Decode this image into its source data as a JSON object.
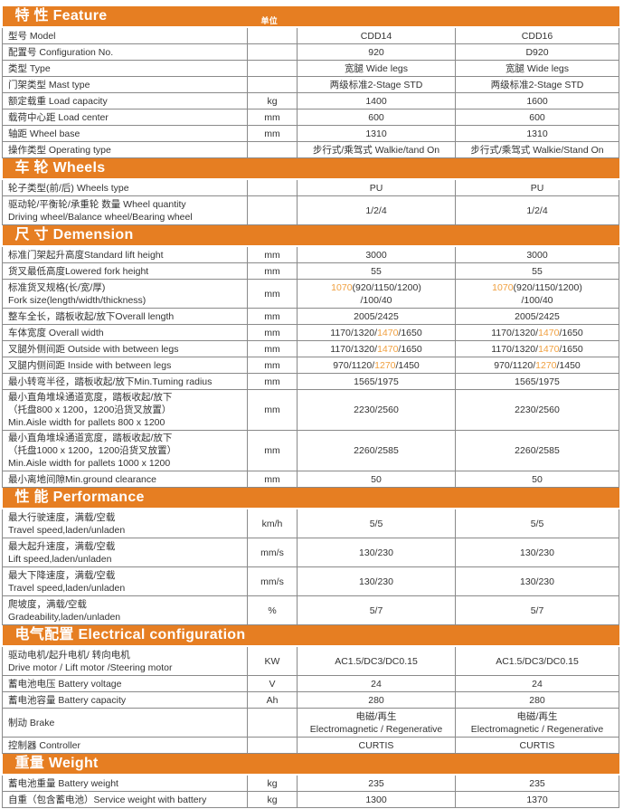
{
  "accent_color": "#e67e22",
  "highlight_color": "#f0a040",
  "unit_header": "单位",
  "sections": [
    {
      "title": "特 性  Feature",
      "show_unit_header": true,
      "rows": [
        {
          "label": [
            "型号 Model"
          ],
          "unit": "",
          "values": [
            [
              "CDD14"
            ],
            [
              "CDD16"
            ]
          ]
        },
        {
          "label": [
            "配置号 Configuration No."
          ],
          "unit": "",
          "values": [
            [
              "920"
            ],
            [
              "D920"
            ]
          ]
        },
        {
          "label": [
            "类型 Type"
          ],
          "unit": "",
          "values": [
            [
              "宽腿 Wide legs"
            ],
            [
              "宽腿 Wide legs"
            ]
          ]
        },
        {
          "label": [
            "门架类型 Mast type"
          ],
          "unit": "",
          "values": [
            [
              "两级标准2-Stage STD"
            ],
            [
              "两级标准2-Stage STD"
            ]
          ]
        },
        {
          "label": [
            "额定载重 Load capacity"
          ],
          "unit": "kg",
          "values": [
            [
              "1400"
            ],
            [
              "1600"
            ]
          ]
        },
        {
          "label": [
            "载荷中心距 Load center"
          ],
          "unit": "mm",
          "values": [
            [
              "600"
            ],
            [
              "600"
            ]
          ]
        },
        {
          "label": [
            "轴距 Wheel base"
          ],
          "unit": "mm",
          "values": [
            [
              "1310"
            ],
            [
              "1310"
            ]
          ]
        },
        {
          "label": [
            "操作类型 Operating type"
          ],
          "unit": "",
          "values": [
            [
              "步行式/乘驾式 Walkie/tand On"
            ],
            [
              "步行式/乘驾式 Walkie/Stand On"
            ]
          ]
        }
      ]
    },
    {
      "title": "车 轮  Wheels",
      "rows": [
        {
          "label": [
            "轮子类型(前/后) Wheels type"
          ],
          "unit": "",
          "values": [
            [
              "PU"
            ],
            [
              "PU"
            ]
          ]
        },
        {
          "label": [
            "驱动轮/平衡轮/承重轮 数量 Wheel quantity",
            "Driving wheel/Balance wheel/Bearing wheel"
          ],
          "unit": "",
          "values": [
            [
              "1/2/4"
            ],
            [
              "1/2/4"
            ]
          ]
        }
      ]
    },
    {
      "title": "尺 寸 Demension",
      "rows": [
        {
          "label": [
            "标准门架起升高度Standard lift height"
          ],
          "unit": "mm",
          "values": [
            [
              "3000"
            ],
            [
              "3000"
            ]
          ]
        },
        {
          "label": [
            "货叉最低高度Lowered fork height"
          ],
          "unit": "mm",
          "values": [
            [
              "55"
            ],
            [
              "55"
            ]
          ]
        },
        {
          "label": [
            "标准货叉规格(长/宽/厚)",
            "Fork size(length/width/thickness)"
          ],
          "unit": "mm",
          "values": [
            [
              [
                {
                  "text": "1070",
                  "highlight": true
                },
                {
                  "text": "(920/1150/1200)"
                }
              ],
              "/100/40"
            ],
            [
              [
                {
                  "text": "1070",
                  "highlight": true
                },
                {
                  "text": "(920/1150/1200)"
                }
              ],
              "/100/40"
            ]
          ]
        },
        {
          "label": [
            "整车全长，踏板收起/放下Overall length"
          ],
          "unit": "mm",
          "values": [
            [
              "2005/2425"
            ],
            [
              "2005/2425"
            ]
          ]
        },
        {
          "label": [
            "车体宽度 Overall width"
          ],
          "unit": "mm",
          "values": [
            [
              [
                {
                  "text": "1170/1320/"
                },
                {
                  "text": "1470",
                  "highlight": true
                },
                {
                  "text": "/1650"
                }
              ]
            ],
            [
              [
                {
                  "text": "1170/1320/"
                },
                {
                  "text": "1470",
                  "highlight": true
                },
                {
                  "text": "/1650"
                }
              ]
            ]
          ]
        },
        {
          "label": [
            "叉腿外侧间距 Outside with between legs"
          ],
          "unit": "mm",
          "values": [
            [
              [
                {
                  "text": "1170/1320/"
                },
                {
                  "text": "1470",
                  "highlight": true
                },
                {
                  "text": "/1650"
                }
              ]
            ],
            [
              [
                {
                  "text": "1170/1320/"
                },
                {
                  "text": "1470",
                  "highlight": true
                },
                {
                  "text": "/1650"
                }
              ]
            ]
          ]
        },
        {
          "label": [
            "叉腿内侧间距 Inside with between legs"
          ],
          "unit": "mm",
          "values": [
            [
              [
                {
                  "text": "970/1120/"
                },
                {
                  "text": "1270",
                  "highlight": true
                },
                {
                  "text": "/1450"
                }
              ]
            ],
            [
              [
                {
                  "text": "970/1120/"
                },
                {
                  "text": "1270",
                  "highlight": true
                },
                {
                  "text": "/1450"
                }
              ]
            ]
          ]
        },
        {
          "label": [
            "最小转弯半径，踏板收起/放下Min.Tuming radius"
          ],
          "unit": "mm",
          "values": [
            [
              "1565/1975"
            ],
            [
              "1565/1975"
            ]
          ]
        },
        {
          "label": [
            "最小直角堆垛通道宽度，踏板收起/放下",
            "（托盘800 x 1200，1200沿货叉放置）",
            "Min.Aisle width for pallets 800 x 1200"
          ],
          "unit": "mm",
          "values": [
            [
              "2230/2560"
            ],
            [
              "2230/2560"
            ]
          ]
        },
        {
          "label": [
            "最小直角堆垛通道宽度，踏板收起/放下",
            "（托盘1000 x 1200，1200沿货叉放置）",
            "Min.Aisle width for pallets 1000 x 1200"
          ],
          "unit": "mm",
          "values": [
            [
              "2260/2585"
            ],
            [
              "2260/2585"
            ]
          ]
        },
        {
          "label": [
            "最小离地间隙Min.ground clearance"
          ],
          "unit": "mm",
          "values": [
            [
              "50"
            ],
            [
              "50"
            ]
          ]
        }
      ]
    },
    {
      "title": "性 能 Performance",
      "rows": [
        {
          "label": [
            "最大行驶速度，满载/空载",
            "Travel speed,laden/unladen"
          ],
          "unit": "km/h",
          "values": [
            [
              "5/5"
            ],
            [
              "5/5"
            ]
          ]
        },
        {
          "label": [
            "最大起升速度，满载/空载",
            "Lift speed,laden/unladen"
          ],
          "unit": "mm/s",
          "values": [
            [
              "130/230"
            ],
            [
              "130/230"
            ]
          ]
        },
        {
          "label": [
            "最大下降速度，满载/空载",
            "Travel speed,laden/unladen"
          ],
          "unit": "mm/s",
          "values": [
            [
              "130/230"
            ],
            [
              "130/230"
            ]
          ]
        },
        {
          "label": [
            "爬坡度，满载/空载",
            "Gradeability,laden/unladen"
          ],
          "unit": "%",
          "values": [
            [
              "5/7"
            ],
            [
              "5/7"
            ]
          ]
        }
      ]
    },
    {
      "title": "电气配置 Electrical configuration",
      "rows": [
        {
          "label": [
            "驱动电机/起升电机/ 转向电机",
            "Drive motor / Lift motor /Steering motor"
          ],
          "unit": "KW",
          "values": [
            [
              "AC1.5/DC3/DC0.15"
            ],
            [
              "AC1.5/DC3/DC0.15"
            ]
          ]
        },
        {
          "label": [
            "蓄电池电压 Battery voltage"
          ],
          "unit": "V",
          "values": [
            [
              "24"
            ],
            [
              "24"
            ]
          ]
        },
        {
          "label": [
            "蓄电池容量 Battery capacity"
          ],
          "unit": "Ah",
          "values": [
            [
              "280"
            ],
            [
              "280"
            ]
          ]
        },
        {
          "label": [
            "制动 Brake"
          ],
          "unit": "",
          "values": [
            [
              "电磁/再生",
              "Electromagnetic / Regenerative"
            ],
            [
              "电磁/再生",
              "Electromagnetic / Regenerative"
            ]
          ]
        },
        {
          "label": [
            "控制器  Controller"
          ],
          "unit": "",
          "values": [
            [
              "CURTIS"
            ],
            [
              "CURTIS"
            ]
          ]
        }
      ]
    },
    {
      "title": "重量 Weight",
      "rows": [
        {
          "label": [
            "蓄电池重量 Battery weight"
          ],
          "unit": "kg",
          "values": [
            [
              "235"
            ],
            [
              "235"
            ]
          ]
        },
        {
          "label": [
            "自重（包含蓄电池）Service weight with battery"
          ],
          "unit": "kg",
          "values": [
            [
              "1300"
            ],
            [
              "1370"
            ]
          ]
        }
      ]
    }
  ]
}
